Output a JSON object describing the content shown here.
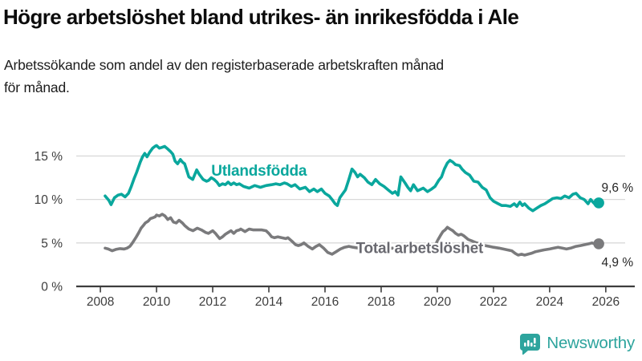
{
  "header": {
    "title": "Högre arbetslöshet bland utrikes- än inrikesfödda i Ale",
    "subtitle_line1": "Arbetssökande som andel av den registerbaserade arbetskraften månad",
    "subtitle_line2": "för månad."
  },
  "footer": {
    "brand": "Newsworthy"
  },
  "colors": {
    "accent_teal": "#0aa79d",
    "series_gray": "#7a7a7c",
    "gray_label": "#696970",
    "grid": "#d9d9d9",
    "axis": "#3d3d3d",
    "value_label": "#262626",
    "logo_teal": "#2da49d"
  },
  "chart_data": {
    "type": "line",
    "title": "Högre arbetslöshet bland utrikes- än inrikesfödda i Ale",
    "subtitle": "Arbetssökande som andel av den registerbaserade arbetskraften månad för månad.",
    "xlabel": "",
    "ylabel": "",
    "grid": true,
    "legend_position": "inline-labels",
    "x_axis": {
      "lim": [
        2007.14,
        2027.09
      ],
      "ticks": [
        2008,
        2010,
        2012,
        2014,
        2016,
        2018,
        2020,
        2022,
        2024,
        2026
      ]
    },
    "y_axis": {
      "lim": [
        0,
        17.44
      ],
      "ticks": [
        0,
        5,
        10,
        15
      ],
      "suffix": " %"
    },
    "series": [
      {
        "name": "Utlandsfödda",
        "color": "#0aa79d",
        "label_color": "#0aa79d",
        "end_value_label": "9,6 %",
        "end_value": 9.6,
        "label_pos": {
          "year": 2011.95,
          "value": 12.72
        },
        "value_label_offset": [
          43,
          -14
        ],
        "points": [
          [
            2008.17,
            10.4
          ],
          [
            2008.3,
            9.9
          ],
          [
            2008.38,
            9.4
          ],
          [
            2008.5,
            10.2
          ],
          [
            2008.63,
            10.5
          ],
          [
            2008.75,
            10.6
          ],
          [
            2008.88,
            10.3
          ],
          [
            2009.0,
            10.7
          ],
          [
            2009.1,
            11.5
          ],
          [
            2009.2,
            12.4
          ],
          [
            2009.29,
            13.1
          ],
          [
            2009.42,
            14.3
          ],
          [
            2009.5,
            14.9
          ],
          [
            2009.58,
            15.3
          ],
          [
            2009.66,
            14.9
          ],
          [
            2009.75,
            15.4
          ],
          [
            2009.86,
            15.9
          ],
          [
            2009.94,
            16.1
          ],
          [
            2010.0,
            16.2
          ],
          [
            2010.1,
            15.9
          ],
          [
            2010.2,
            16.0
          ],
          [
            2010.29,
            16.1
          ],
          [
            2010.4,
            15.8
          ],
          [
            2010.5,
            15.5
          ],
          [
            2010.58,
            15.2
          ],
          [
            2010.66,
            14.4
          ],
          [
            2010.75,
            14.1
          ],
          [
            2010.85,
            14.6
          ],
          [
            2010.92,
            14.3
          ],
          [
            2011.0,
            14.1
          ],
          [
            2011.08,
            13.3
          ],
          [
            2011.15,
            12.6
          ],
          [
            2011.29,
            12.3
          ],
          [
            2011.43,
            13.4
          ],
          [
            2011.52,
            12.9
          ],
          [
            2011.66,
            12.3
          ],
          [
            2011.78,
            12.1
          ],
          [
            2011.86,
            12.2
          ],
          [
            2011.95,
            12.5
          ],
          [
            2012.05,
            12.3
          ],
          [
            2012.15,
            12.0
          ],
          [
            2012.24,
            11.6
          ],
          [
            2012.35,
            11.8
          ],
          [
            2012.45,
            11.7
          ],
          [
            2012.55,
            12.0
          ],
          [
            2012.65,
            11.7
          ],
          [
            2012.75,
            11.9
          ],
          [
            2012.85,
            11.7
          ],
          [
            2012.95,
            11.8
          ],
          [
            2013.1,
            11.5
          ],
          [
            2013.3,
            11.3
          ],
          [
            2013.5,
            11.6
          ],
          [
            2013.7,
            11.4
          ],
          [
            2013.9,
            11.6
          ],
          [
            2014.1,
            11.7
          ],
          [
            2014.25,
            11.8
          ],
          [
            2014.4,
            11.7
          ],
          [
            2014.55,
            11.9
          ],
          [
            2014.65,
            11.8
          ],
          [
            2014.8,
            11.5
          ],
          [
            2014.93,
            11.7
          ],
          [
            2015.1,
            11.2
          ],
          [
            2015.3,
            11.4
          ],
          [
            2015.45,
            10.9
          ],
          [
            2015.6,
            11.2
          ],
          [
            2015.73,
            10.9
          ],
          [
            2015.87,
            11.2
          ],
          [
            2016.0,
            10.7
          ],
          [
            2016.15,
            10.4
          ],
          [
            2016.25,
            10.0
          ],
          [
            2016.36,
            9.5
          ],
          [
            2016.44,
            9.3
          ],
          [
            2016.53,
            10.2
          ],
          [
            2016.64,
            10.7
          ],
          [
            2016.73,
            11.1
          ],
          [
            2016.85,
            12.3
          ],
          [
            2016.96,
            13.5
          ],
          [
            2017.07,
            13.1
          ],
          [
            2017.16,
            12.6
          ],
          [
            2017.25,
            12.9
          ],
          [
            2017.4,
            12.5
          ],
          [
            2017.53,
            12.0
          ],
          [
            2017.67,
            11.7
          ],
          [
            2017.8,
            12.3
          ],
          [
            2017.95,
            11.8
          ],
          [
            2018.1,
            11.5
          ],
          [
            2018.25,
            11.1
          ],
          [
            2018.4,
            10.7
          ],
          [
            2018.5,
            10.9
          ],
          [
            2018.6,
            10.5
          ],
          [
            2018.7,
            12.6
          ],
          [
            2018.85,
            11.9
          ],
          [
            2018.95,
            11.4
          ],
          [
            2019.05,
            11.0
          ],
          [
            2019.15,
            11.7
          ],
          [
            2019.3,
            11.0
          ],
          [
            2019.5,
            11.3
          ],
          [
            2019.65,
            10.9
          ],
          [
            2019.8,
            11.2
          ],
          [
            2019.92,
            11.5
          ],
          [
            2020.05,
            12.2
          ],
          [
            2020.15,
            12.6
          ],
          [
            2020.25,
            13.5
          ],
          [
            2020.36,
            14.2
          ],
          [
            2020.45,
            14.5
          ],
          [
            2020.55,
            14.3
          ],
          [
            2020.65,
            14.0
          ],
          [
            2020.79,
            13.9
          ],
          [
            2020.88,
            13.5
          ],
          [
            2021.0,
            13.1
          ],
          [
            2021.15,
            12.8
          ],
          [
            2021.3,
            12.1
          ],
          [
            2021.45,
            12.0
          ],
          [
            2021.6,
            11.4
          ],
          [
            2021.74,
            11.1
          ],
          [
            2021.88,
            10.2
          ],
          [
            2022.0,
            9.8
          ],
          [
            2022.17,
            9.5
          ],
          [
            2022.3,
            9.3
          ],
          [
            2022.45,
            9.3
          ],
          [
            2022.6,
            9.2
          ],
          [
            2022.74,
            9.5
          ],
          [
            2022.83,
            9.2
          ],
          [
            2022.94,
            9.7
          ],
          [
            2023.03,
            9.3
          ],
          [
            2023.11,
            9.5
          ],
          [
            2023.26,
            9.0
          ],
          [
            2023.4,
            8.7
          ],
          [
            2023.54,
            9.0
          ],
          [
            2023.69,
            9.3
          ],
          [
            2023.83,
            9.5
          ],
          [
            2023.97,
            9.8
          ],
          [
            2024.11,
            10.1
          ],
          [
            2024.26,
            10.2
          ],
          [
            2024.4,
            10.1
          ],
          [
            2024.54,
            10.4
          ],
          [
            2024.69,
            10.2
          ],
          [
            2024.83,
            10.6
          ],
          [
            2024.94,
            10.7
          ],
          [
            2025.09,
            10.2
          ],
          [
            2025.23,
            10.0
          ],
          [
            2025.37,
            9.5
          ],
          [
            2025.46,
            10.0
          ],
          [
            2025.54,
            9.7
          ],
          [
            2025.66,
            9.3
          ],
          [
            2025.75,
            9.6
          ]
        ]
      },
      {
        "name": "Total arbetslöshet",
        "color": "#7a7a7c",
        "label_color": "#696970",
        "end_value_label": "4,9 %",
        "end_value": 4.9,
        "label_pos": {
          "year": 2017.1,
          "value": 3.82
        },
        "value_label_offset": [
          43,
          28
        ],
        "points": [
          [
            2008.17,
            4.4
          ],
          [
            2008.28,
            4.3
          ],
          [
            2008.42,
            4.1
          ],
          [
            2008.55,
            4.25
          ],
          [
            2008.7,
            4.35
          ],
          [
            2008.85,
            4.3
          ],
          [
            2008.95,
            4.4
          ],
          [
            2009.05,
            4.6
          ],
          [
            2009.12,
            4.9
          ],
          [
            2009.2,
            5.3
          ],
          [
            2009.28,
            5.7
          ],
          [
            2009.37,
            6.2
          ],
          [
            2009.45,
            6.7
          ],
          [
            2009.53,
            7.0
          ],
          [
            2009.6,
            7.3
          ],
          [
            2009.7,
            7.5
          ],
          [
            2009.78,
            7.8
          ],
          [
            2009.87,
            7.9
          ],
          [
            2009.95,
            8.0
          ],
          [
            2010.0,
            8.2
          ],
          [
            2010.1,
            8.1
          ],
          [
            2010.2,
            8.3
          ],
          [
            2010.3,
            8.1
          ],
          [
            2010.4,
            7.7
          ],
          [
            2010.5,
            7.9
          ],
          [
            2010.6,
            7.4
          ],
          [
            2010.7,
            7.3
          ],
          [
            2010.8,
            7.6
          ],
          [
            2010.92,
            7.3
          ],
          [
            2011.0,
            7.0
          ],
          [
            2011.15,
            6.6
          ],
          [
            2011.3,
            6.4
          ],
          [
            2011.45,
            6.7
          ],
          [
            2011.6,
            6.5
          ],
          [
            2011.75,
            6.2
          ],
          [
            2011.85,
            6.1
          ],
          [
            2011.95,
            6.3
          ],
          [
            2012.0,
            6.4
          ],
          [
            2012.1,
            6.1
          ],
          [
            2012.17,
            5.8
          ],
          [
            2012.25,
            5.5
          ],
          [
            2012.35,
            5.7
          ],
          [
            2012.45,
            6.0
          ],
          [
            2012.55,
            6.2
          ],
          [
            2012.65,
            6.4
          ],
          [
            2012.75,
            6.1
          ],
          [
            2012.85,
            6.4
          ],
          [
            2012.95,
            6.5
          ],
          [
            2013.0,
            6.6
          ],
          [
            2013.15,
            6.3
          ],
          [
            2013.3,
            6.6
          ],
          [
            2013.45,
            6.5
          ],
          [
            2013.6,
            6.5
          ],
          [
            2013.75,
            6.5
          ],
          [
            2013.9,
            6.4
          ],
          [
            2014.0,
            6.1
          ],
          [
            2014.1,
            5.7
          ],
          [
            2014.2,
            5.6
          ],
          [
            2014.32,
            5.7
          ],
          [
            2014.45,
            5.6
          ],
          [
            2014.6,
            5.5
          ],
          [
            2014.68,
            5.6
          ],
          [
            2014.82,
            5.2
          ],
          [
            2014.95,
            4.8
          ],
          [
            2015.05,
            4.7
          ],
          [
            2015.15,
            4.8
          ],
          [
            2015.25,
            5.0
          ],
          [
            2015.4,
            4.6
          ],
          [
            2015.55,
            4.3
          ],
          [
            2015.68,
            4.6
          ],
          [
            2015.8,
            4.8
          ],
          [
            2015.95,
            4.4
          ],
          [
            2016.1,
            3.9
          ],
          [
            2016.25,
            3.7
          ],
          [
            2016.4,
            4.0
          ],
          [
            2016.55,
            4.3
          ],
          [
            2016.7,
            4.5
          ],
          [
            2016.85,
            4.6
          ],
          [
            2017.0,
            4.5
          ],
          [
            2017.2,
            4.4
          ],
          [
            2017.35,
            4.5
          ],
          [
            2017.5,
            4.4
          ],
          [
            2017.7,
            4.3
          ],
          [
            2017.85,
            4.2
          ],
          [
            2018.0,
            4.2
          ],
          [
            2018.2,
            4.3
          ],
          [
            2018.4,
            4.4
          ],
          [
            2018.55,
            4.3
          ],
          [
            2018.7,
            4.3
          ],
          [
            2018.85,
            4.4
          ],
          [
            2019.0,
            4.3
          ],
          [
            2019.2,
            4.3
          ],
          [
            2019.4,
            4.4
          ],
          [
            2019.55,
            4.4
          ],
          [
            2019.7,
            4.5
          ],
          [
            2019.85,
            4.7
          ],
          [
            2019.95,
            4.9
          ],
          [
            2020.03,
            5.4
          ],
          [
            2020.12,
            5.9
          ],
          [
            2020.2,
            6.3
          ],
          [
            2020.28,
            6.5
          ],
          [
            2020.36,
            6.8
          ],
          [
            2020.45,
            6.6
          ],
          [
            2020.55,
            6.4
          ],
          [
            2020.65,
            6.1
          ],
          [
            2020.75,
            5.9
          ],
          [
            2020.85,
            6.0
          ],
          [
            2020.95,
            5.8
          ],
          [
            2021.1,
            5.4
          ],
          [
            2021.25,
            5.2
          ],
          [
            2021.4,
            5.0
          ],
          [
            2021.55,
            4.9
          ],
          [
            2021.7,
            4.7
          ],
          [
            2021.85,
            4.6
          ],
          [
            2022.0,
            4.5
          ],
          [
            2022.2,
            4.4
          ],
          [
            2022.35,
            4.3
          ],
          [
            2022.5,
            4.2
          ],
          [
            2022.65,
            4.1
          ],
          [
            2022.77,
            3.8
          ],
          [
            2022.88,
            3.6
          ],
          [
            2023.0,
            3.7
          ],
          [
            2023.11,
            3.6
          ],
          [
            2023.23,
            3.7
          ],
          [
            2023.35,
            3.8
          ],
          [
            2023.5,
            4.0
          ],
          [
            2023.65,
            4.1
          ],
          [
            2023.8,
            4.2
          ],
          [
            2024.0,
            4.3
          ],
          [
            2024.15,
            4.4
          ],
          [
            2024.3,
            4.5
          ],
          [
            2024.45,
            4.4
          ],
          [
            2024.6,
            4.3
          ],
          [
            2024.75,
            4.4
          ],
          [
            2024.94,
            4.6
          ],
          [
            2025.1,
            4.7
          ],
          [
            2025.25,
            4.8
          ],
          [
            2025.4,
            4.9
          ],
          [
            2025.51,
            5.0
          ],
          [
            2025.6,
            4.9
          ],
          [
            2025.68,
            4.85
          ],
          [
            2025.75,
            4.9
          ]
        ]
      }
    ]
  }
}
